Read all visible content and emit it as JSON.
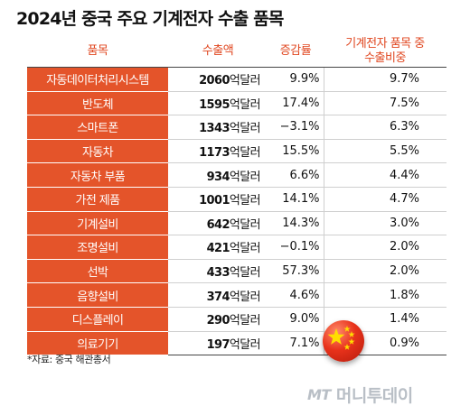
{
  "title": "2024년 중국 주요 기계전자 수출 품목",
  "headers": {
    "item": "품목",
    "amount": "수출액",
    "rate": "증감률",
    "share_line1": "기계전자 품목 중",
    "share_line2": "수출비중"
  },
  "unit": "억달러",
  "rows": [
    {
      "item": "자동데이터처리시스템",
      "amount": "2060",
      "rate": "9.9%",
      "share": "9.7%"
    },
    {
      "item": "반도체",
      "amount": "1595",
      "rate": "17.4%",
      "share": "7.5%"
    },
    {
      "item": "스마트폰",
      "amount": "1343",
      "rate": "−3.1%",
      "share": "6.3%"
    },
    {
      "item": "자동차",
      "amount": "1173",
      "rate": "15.5%",
      "share": "5.5%"
    },
    {
      "item": "자동차 부품",
      "amount": "934",
      "rate": "6.6%",
      "share": "4.4%"
    },
    {
      "item": "가전 제품",
      "amount": "1001",
      "rate": "14.1%",
      "share": "4.7%"
    },
    {
      "item": "기계설비",
      "amount": "642",
      "rate": "14.3%",
      "share": "3.0%"
    },
    {
      "item": "조명설비",
      "amount": "421",
      "rate": "−0.1%",
      "share": "2.0%"
    },
    {
      "item": "선박",
      "amount": "433",
      "rate": "57.3%",
      "share": "2.0%"
    },
    {
      "item": "음향설비",
      "amount": "374",
      "rate": "4.6%",
      "share": "1.8%"
    },
    {
      "item": "디스플레이",
      "amount": "290",
      "rate": "9.0%",
      "share": "1.4%"
    },
    {
      "item": "의료기기",
      "amount": "197",
      "rate": "7.1%",
      "share": "0.9%"
    }
  ],
  "source": "*자료: 중국 해관총서",
  "logo": {
    "mt": "MT",
    "brand": "머니투데이"
  },
  "colors": {
    "accent": "#e4542a",
    "header_text": "#e0461f",
    "logo": "#b9bfc6"
  },
  "icons": {
    "flag": "china-flag-badge-icon"
  }
}
